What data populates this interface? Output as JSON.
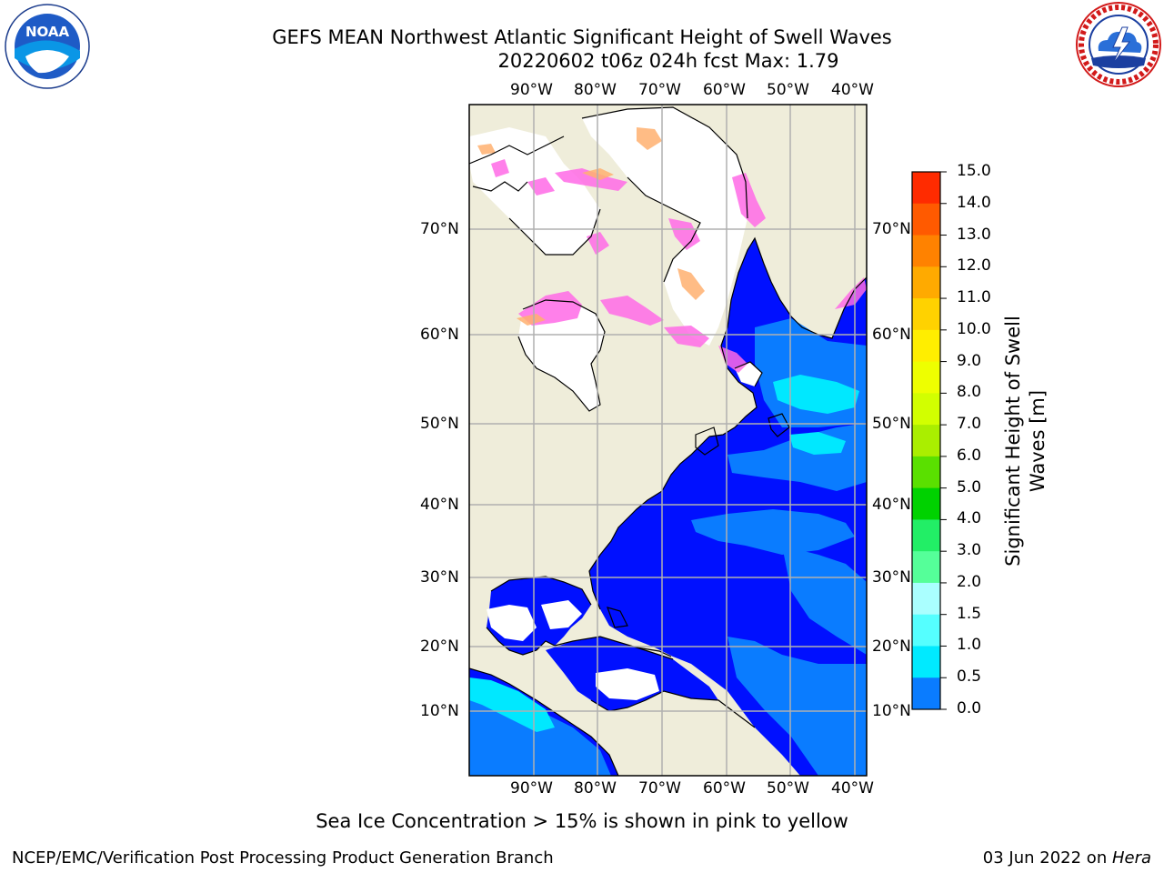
{
  "header": {
    "title_line1": "GEFS MEAN Northwest Atlantic Significant Height of Swell Waves",
    "title_line2": "20220602 t06z 024h fcst   Max: 1.79"
  },
  "logos": {
    "left": "noaa-logo",
    "left_text": "NOAA",
    "left_ring": "NATIONAL OCEANIC AND ATMOSPHERIC ADMINISTRATION · U.S. DEPARTMENT OF COMMERCE",
    "right": "nws-logo",
    "right_ring": "NATIONAL WEATHER SERVICE"
  },
  "map": {
    "lon_labels": [
      "90°W",
      "80°W",
      "70°W",
      "60°W",
      "50°W",
      "40°W"
    ],
    "lat_labels": [
      "70°N",
      "60°N",
      "50°N",
      "40°N",
      "30°N",
      "20°N",
      "10°N"
    ],
    "colors": {
      "land": "#efedda",
      "ocean_low": "#0010ff",
      "ocean_mid": "#0a7cff",
      "ocean_high": "#00e8ff",
      "ice_pink": "#ff6ae6",
      "ice_orange": "#ffb070",
      "ice_white": "#ffffff",
      "grid": "#b0b0b0"
    }
  },
  "colorbar": {
    "label": "Significant Height of Swell Waves [m]",
    "ticks": [
      "15.0",
      "14.0",
      "13.0",
      "12.0",
      "11.0",
      "10.0",
      "9.0",
      "8.0",
      "7.0",
      "6.0",
      "5.0",
      "4.0",
      "3.0",
      "2.0",
      "1.5",
      "1.0",
      "0.5",
      "0.0"
    ],
    "colors": [
      "#ff0000",
      "#ff2b00",
      "#ff5a00",
      "#ff8200",
      "#ffaa00",
      "#ffd200",
      "#ffee00",
      "#eeff00",
      "#d2ff00",
      "#aaee00",
      "#5ae000",
      "#00d200",
      "#22ee66",
      "#55ff99",
      "#aaffff",
      "#55ffff",
      "#00eaff",
      "#0a7cff",
      "#0000ff"
    ]
  },
  "footer": {
    "note": "Sea Ice Concentration > 15% is shown in pink to yellow",
    "left": "NCEP/EMC/Verification Post Processing Product Generation Branch",
    "right_date": "03 Jun 2022 on ",
    "right_host": "Hera"
  }
}
